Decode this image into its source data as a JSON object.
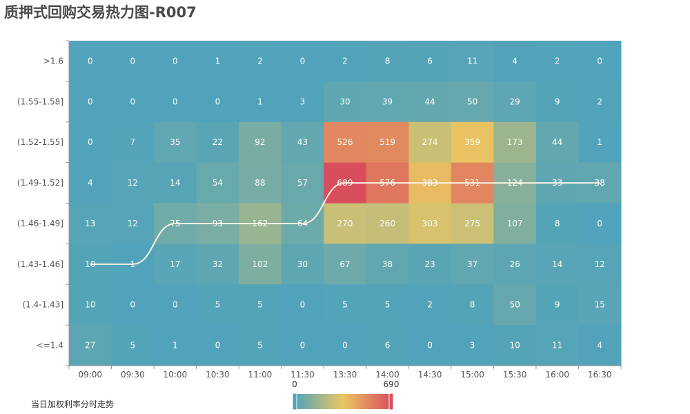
{
  "title": "质押式回购交易热力图-R007",
  "legend": {
    "line_label": "当日加权利率分时走势"
  },
  "visual_map": {
    "min": 0,
    "max": 690,
    "min_label": "0",
    "max_label": "690",
    "colors": [
      "#50a3ba",
      "#eac763",
      "#d94e5d"
    ]
  },
  "colors": {
    "line": "#fdf3e4",
    "axis": "#999999"
  },
  "chart_data": {
    "type": "heatmap",
    "x": [
      "09:00",
      "09:30",
      "10:00",
      "10:30",
      "11:00",
      "11:30",
      "13:30",
      "14:00",
      "14:30",
      "15:00",
      "15:30",
      "16:00",
      "16:30"
    ],
    "y": [
      ">1.6",
      "(1.55-1.58]",
      "(1.52-1.55]",
      "(1.49-1.52]",
      "(1.46-1.49]",
      "(1.43-1.46]",
      "(1.4-1.43]",
      "<=1.4"
    ],
    "values": [
      [
        0,
        0,
        0,
        1,
        2,
        0,
        2,
        8,
        6,
        11,
        4,
        2,
        0
      ],
      [
        0,
        0,
        0,
        0,
        1,
        3,
        30,
        39,
        44,
        50,
        29,
        9,
        2
      ],
      [
        0,
        7,
        35,
        22,
        92,
        43,
        526,
        519,
        274,
        359,
        173,
        44,
        1
      ],
      [
        4,
        12,
        14,
        54,
        88,
        57,
        689,
        576,
        383,
        531,
        124,
        33,
        38
      ],
      [
        13,
        12,
        75,
        93,
        162,
        64,
        270,
        260,
        303,
        275,
        107,
        8,
        0
      ],
      [
        10,
        1,
        17,
        32,
        102,
        30,
        67,
        38,
        23,
        37,
        26,
        14,
        12
      ],
      [
        10,
        0,
        0,
        5,
        5,
        0,
        5,
        5,
        2,
        8,
        50,
        9,
        15
      ],
      [
        27,
        5,
        1,
        0,
        5,
        0,
        0,
        6,
        0,
        3,
        10,
        11,
        4
      ]
    ],
    "line_series": {
      "name": "当日加权利率分时走势",
      "row_index": [
        5,
        5,
        4,
        4,
        4,
        4,
        3,
        3,
        3,
        3,
        3,
        3,
        3
      ]
    },
    "grid": false
  }
}
